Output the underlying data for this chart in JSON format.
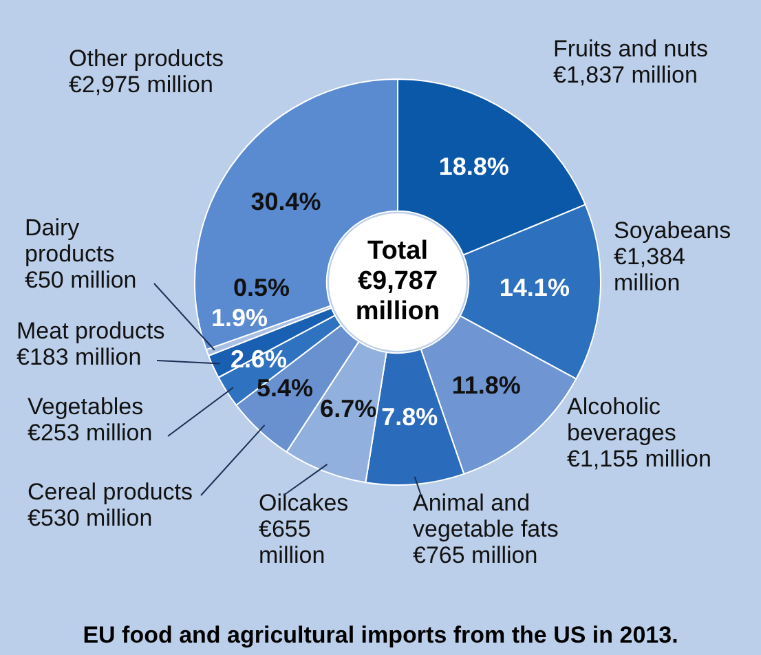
{
  "chart_data": {
    "type": "donut",
    "title": "EU food and agricultural imports from the US in 2013.",
    "categories": [
      "Fruits and nuts",
      "Soyabeans",
      "Alcoholic beverages",
      "Animal and vegetable fats",
      "Oilcakes",
      "Cereal products",
      "Vegetables",
      "Meat products",
      "Dairy products",
      "Other products"
    ],
    "values": [
      1837,
      1384,
      1155,
      765,
      655,
      530,
      253,
      183,
      50,
      2975
    ],
    "value_labels": [
      "€1,837 million",
      "€1,384 million",
      "€1,155 million",
      "€765 million",
      "€655 million",
      "€530 million",
      "€253 million",
      "€183 million",
      "€50 million",
      "€2,975 million"
    ],
    "colors": [
      "#0b58a8",
      "#2d70be",
      "#6f95d2",
      "#2a6bbb",
      "#92b0de",
      "#6991d0",
      "#2f72c0",
      "#1a60b2",
      "#a9c0e4",
      "#5a8ad0"
    ],
    "legend": false,
    "annotations": [
      "Total €9,787 million",
      {
        "text": "18.8%",
        "x": "Fruits and nuts"
      },
      {
        "text": "14.1%",
        "x": "Soyabeans"
      },
      {
        "text": "11.8%",
        "x": "Alcoholic beverages"
      },
      {
        "text": "7.8%",
        "x": "Animal and vegetable fats"
      },
      {
        "text": "6.7%",
        "x": "Oilcakes"
      },
      {
        "text": "5.4%",
        "x": "Cereal products"
      },
      {
        "text": "2.6%",
        "x": "Vegetables"
      },
      {
        "text": "1.9%",
        "x": "Meat products"
      },
      {
        "text": "0.5%",
        "x": "Dairy products"
      },
      {
        "text": "30.4%",
        "x": "Other products"
      }
    ]
  }
}
